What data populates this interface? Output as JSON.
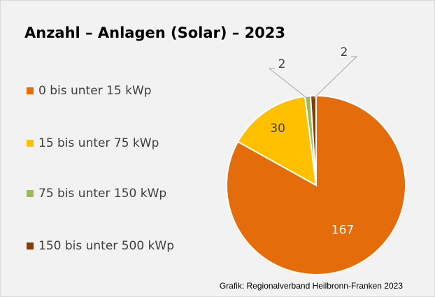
{
  "chart_data": {
    "type": "pie",
    "title": "Anzahl – Anlagen (Solar) – 2023",
    "categories": [
      "0 bis unter 15 kWp",
      "15 bis unter 75 kWp",
      "75 bis unter 150 kWp",
      "150 bis unter 500 kWp"
    ],
    "values": [
      167,
      30,
      2,
      2
    ],
    "colors": [
      "#e46c0a",
      "#ffc000",
      "#9bbb59",
      "#843c0c"
    ],
    "legend": "left",
    "source": "Grafik: Regionalverband Heilbronn-Franken 2023"
  }
}
